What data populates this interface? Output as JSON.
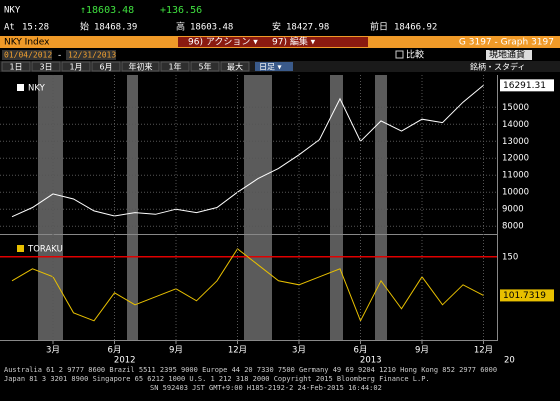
{
  "header": {
    "ticker": "NKY",
    "last": "↑18603.48",
    "change": "+136.56",
    "time_label": "At",
    "time": "15:28",
    "open_label": "始",
    "open": "18468.39",
    "high_label": "高",
    "high": "18603.48",
    "low_label": "安",
    "low": "18427.98",
    "prev_label": "前日",
    "prev": "18466.92"
  },
  "toolbar": {
    "security": "NKY Index",
    "actions": "96) アクション ▾",
    "edit": "97) 編集 ▾",
    "graph": "G 3197 - Graph 3197",
    "start_date": "01/04/2012",
    "end_date": "12/31/2013",
    "compare": "比較",
    "currency": "現地通貨",
    "ranges": [
      "1日",
      "3日",
      "1月",
      "6月",
      "年初来",
      "1年",
      "5年",
      "最大"
    ],
    "frequency": "日足 ▾",
    "studies": "銘柄・スタディ"
  },
  "chart_data": [
    {
      "type": "line",
      "series": [
        {
          "name": "NKY",
          "color": "#ffffff",
          "values": [
            8560,
            9100,
            9900,
            9600,
            8900,
            8600,
            8800,
            8700,
            9000,
            8800,
            9100,
            10000,
            10800,
            11400,
            12200,
            13100,
            15500,
            13000,
            14200,
            13600,
            14300,
            14100,
            15300,
            16291.31
          ]
        }
      ],
      "ylim": [
        7600,
        16900
      ],
      "yticks": [
        8000,
        9000,
        10000,
        11000,
        12000,
        13000,
        14000,
        15000
      ],
      "grid": true
    },
    {
      "type": "line",
      "categories": [
        null,
        null,
        "3月",
        null,
        null,
        "6月",
        null,
        null,
        "9月",
        null,
        null,
        "12月",
        null,
        null,
        "3月",
        null,
        null,
        "6月",
        null,
        null,
        "9月",
        null,
        null,
        "12月"
      ],
      "x_group_labels": [
        "2012",
        "2013",
        "20"
      ],
      "series": [
        {
          "name": "TORAKU",
          "color": "#e8c000",
          "values": [
            120,
            135,
            125,
            80,
            70,
            105,
            90,
            100,
            110,
            95,
            120,
            160,
            140,
            120,
            115,
            125,
            135,
            70,
            120,
            85,
            125,
            90,
            115,
            101.7319
          ]
        }
      ],
      "ylim": [
        46,
        176
      ],
      "yticks": [
        150
      ],
      "ref_line": {
        "value": 150,
        "color": "#e00000"
      },
      "grid": true
    }
  ],
  "footer": [
    "Australia 61 2 9777 8600 Brazil 5511 2395 9000 Europe 44 20 7330 7500 Germany 49 69 9204 1210 Hong Kong 852 2977 6000",
    "Japan 81 3 3201 8900        Singapore 65 6212 1000        U.S. 1 212 318 2000        Copyright 2015 Bloomberg Finance L.P.",
    "SN 592403 JST  GMT+9:00 H185-2192-2 24-Feb-2015 16:44:02"
  ]
}
